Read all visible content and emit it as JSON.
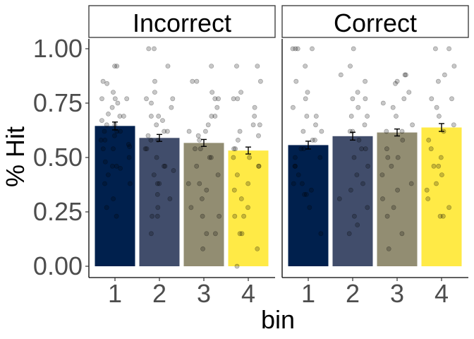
{
  "chart_data": {
    "type": "bar",
    "xlabel": "bin",
    "ylabel": "% Hit",
    "ylim": [
      0,
      1.0
    ],
    "y_ticks": [
      "0.00",
      "0.25",
      "0.50",
      "0.75",
      "1.00"
    ],
    "y_tick_values": [
      0,
      0.25,
      0.5,
      0.75,
      1.0
    ],
    "categories": [
      "1",
      "2",
      "3",
      "4"
    ],
    "bar_colors": [
      "#00204D",
      "#414D6B",
      "#928D72",
      "#FFEA46"
    ],
    "grid": false,
    "legend": "none",
    "panels": [
      {
        "name": "Incorrect",
        "values": [
          0.645,
          0.59,
          0.567,
          0.532
        ],
        "errors": [
          0.018,
          0.016,
          0.016,
          0.016
        ],
        "points": [
          [
            0.92,
            0.92,
            0.85,
            0.84,
            0.8,
            0.77,
            0.77,
            0.77,
            0.75,
            0.73,
            0.7,
            0.69,
            0.69,
            0.67,
            0.65,
            0.65,
            0.62,
            0.62,
            0.62,
            0.6,
            0.58,
            0.58,
            0.56,
            0.55,
            0.54,
            0.54,
            0.5,
            0.48,
            0.46,
            0.46,
            0.45,
            0.42,
            0.38,
            0.38,
            0.31,
            0.27,
            0.23
          ],
          [
            1.0,
            1.0,
            0.92,
            0.85,
            0.8,
            0.77,
            0.77,
            0.75,
            0.73,
            0.69,
            0.69,
            0.67,
            0.65,
            0.62,
            0.62,
            0.6,
            0.58,
            0.58,
            0.54,
            0.54,
            0.5,
            0.46,
            0.46,
            0.44,
            0.42,
            0.38,
            0.38,
            0.33,
            0.31,
            0.27,
            0.23,
            0.23,
            0.15
          ],
          [
            0.92,
            0.85,
            0.85,
            0.8,
            0.77,
            0.77,
            0.73,
            0.69,
            0.69,
            0.65,
            0.62,
            0.62,
            0.6,
            0.58,
            0.54,
            0.54,
            0.5,
            0.5,
            0.46,
            0.42,
            0.38,
            0.38,
            0.35,
            0.31,
            0.27,
            0.23,
            0.23,
            0.15,
            0.15,
            0.08
          ],
          [
            0.92,
            0.92,
            0.85,
            0.8,
            0.77,
            0.77,
            0.73,
            0.69,
            0.65,
            0.65,
            0.62,
            0.6,
            0.58,
            0.54,
            0.54,
            0.5,
            0.5,
            0.46,
            0.46,
            0.42,
            0.38,
            0.35,
            0.31,
            0.27,
            0.23,
            0.23,
            0.15,
            0.15,
            0.08,
            0.0
          ]
        ]
      },
      {
        "name": "Correct",
        "values": [
          0.557,
          0.598,
          0.615,
          0.638
        ],
        "errors": [
          0.018,
          0.018,
          0.016,
          0.018
        ],
        "points": [
          [
            1.0,
            1.0,
            1.0,
            1.0,
            0.92,
            0.85,
            0.8,
            0.77,
            0.73,
            0.69,
            0.69,
            0.65,
            0.62,
            0.62,
            0.58,
            0.58,
            0.54,
            0.54,
            0.5,
            0.5,
            0.46,
            0.46,
            0.42,
            0.38,
            0.38,
            0.35,
            0.33,
            0.33,
            0.27,
            0.15
          ],
          [
            1.0,
            0.92,
            0.88,
            0.85,
            0.8,
            0.77,
            0.77,
            0.73,
            0.69,
            0.69,
            0.65,
            0.62,
            0.62,
            0.58,
            0.54,
            0.54,
            0.5,
            0.46,
            0.42,
            0.38,
            0.35,
            0.31,
            0.27,
            0.23,
            0.19,
            0.15
          ],
          [
            0.88,
            0.88,
            0.85,
            0.84,
            0.8,
            0.77,
            0.75,
            0.73,
            0.69,
            0.65,
            0.62,
            0.62,
            0.58,
            0.54,
            0.5,
            0.5,
            0.46,
            0.42,
            0.38,
            0.35,
            0.31,
            0.27,
            0.23,
            0.15,
            0.08
          ],
          [
            1.0,
            1.0,
            0.92,
            0.88,
            0.85,
            0.77,
            0.77,
            0.73,
            0.69,
            0.65,
            0.62,
            0.58,
            0.54,
            0.5,
            0.46,
            0.46,
            0.42,
            0.38,
            0.35,
            0.31,
            0.27,
            0.23,
            0.23
          ]
        ]
      }
    ]
  }
}
